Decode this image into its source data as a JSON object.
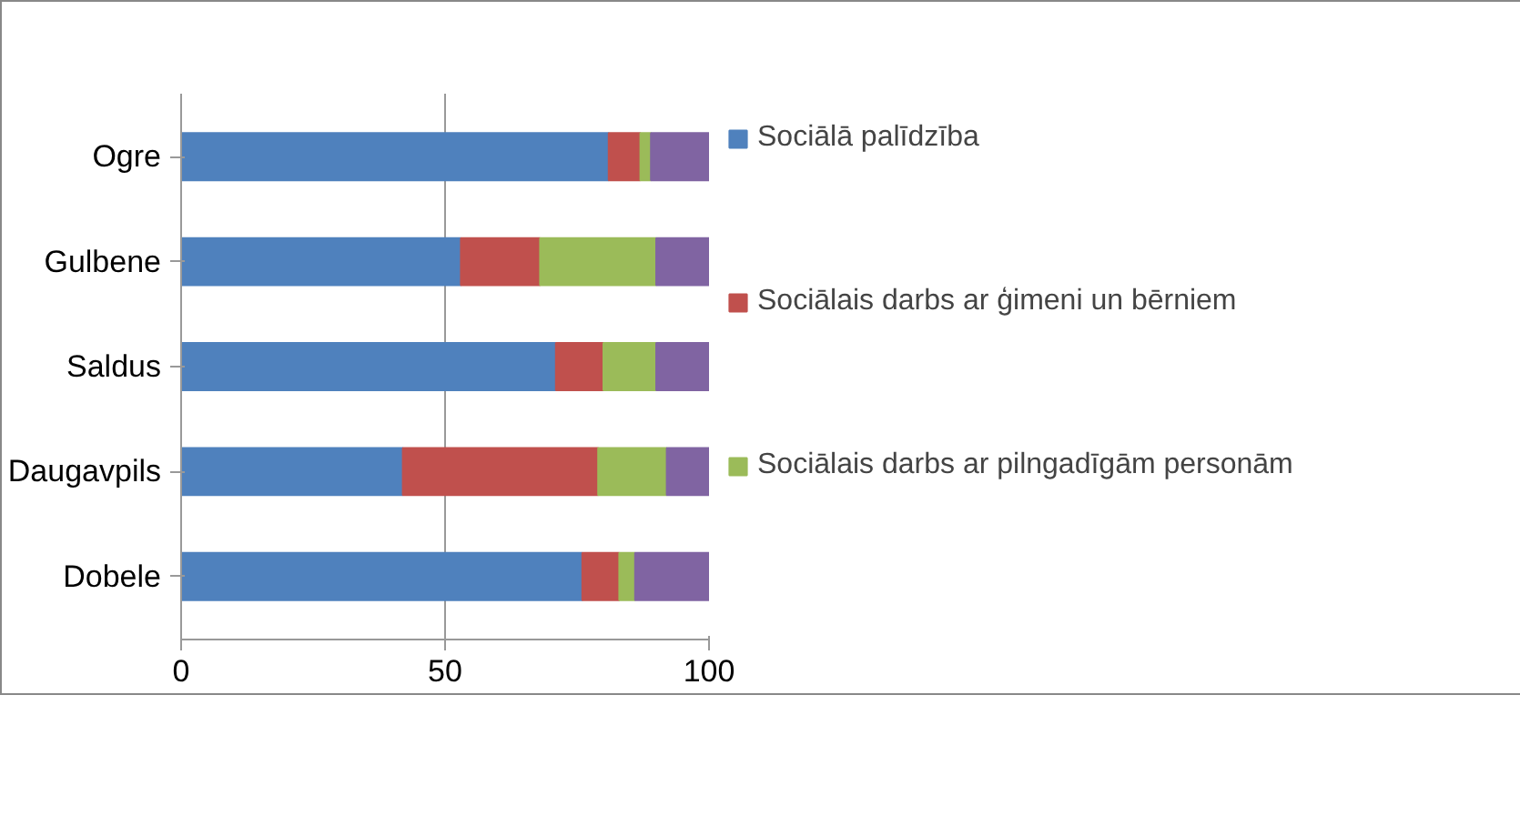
{
  "chart_data": {
    "type": "bar",
    "orientation": "horizontal",
    "stacked": true,
    "categories": [
      "Ogre",
      "Gulbene",
      "Saldus",
      "Daugavpils",
      "Dobele"
    ],
    "series": [
      {
        "name": "Sociālā palīdzība",
        "color": "#4f81bd",
        "values": [
          81,
          53,
          71,
          42,
          76
        ]
      },
      {
        "name": "Sociālais darbs ar ģimeni un bērniem",
        "color": "#c0504d",
        "values": [
          6,
          15,
          9,
          37,
          7
        ]
      },
      {
        "name": "Sociālais darbs ar pilngadīgām personām",
        "color": "#9bbb59",
        "values": [
          2,
          22,
          10,
          13,
          3
        ]
      },
      {
        "color": "#8064a2",
        "values": [
          11,
          10,
          10,
          8,
          14
        ]
      }
    ],
    "xlim": [
      0,
      100
    ],
    "xticks": [
      0,
      50,
      100
    ],
    "grid": "x",
    "legend": "right"
  }
}
